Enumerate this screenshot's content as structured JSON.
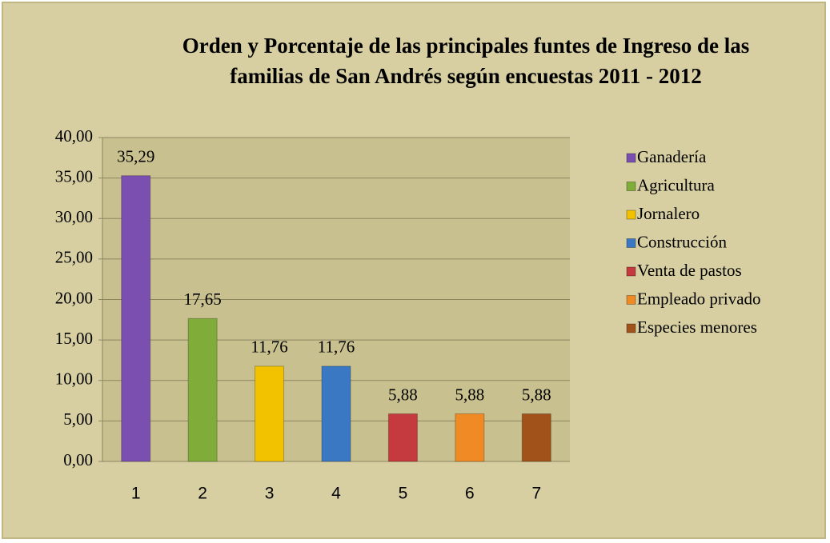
{
  "chart_data": {
    "type": "bar",
    "title": "Orden y Porcentaje de las principales funtes de Ingreso de las familias de San Andrés  según encuestas 2011 - 2012",
    "categories": [
      "1",
      "2",
      "3",
      "4",
      "5",
      "6",
      "7"
    ],
    "series": [
      {
        "name": "Ganadería",
        "color": "#7b4fb0",
        "values": [
          35.29,
          null,
          null,
          null,
          null,
          null,
          null
        ],
        "value_labels": [
          "35,29",
          null,
          null,
          null,
          null,
          null,
          null
        ]
      },
      {
        "name": "Agricultura",
        "color": "#80ad3a",
        "values": [
          null,
          17.65,
          null,
          null,
          null,
          null,
          null
        ],
        "value_labels": [
          null,
          "17,65",
          null,
          null,
          null,
          null,
          null
        ]
      },
      {
        "name": "Jornalero",
        "color": "#f2c200",
        "values": [
          null,
          null,
          11.76,
          null,
          null,
          null,
          null
        ],
        "value_labels": [
          null,
          null,
          "11,76",
          null,
          null,
          null,
          null
        ]
      },
      {
        "name": "Construcción",
        "color": "#3b78c4",
        "values": [
          null,
          null,
          null,
          11.76,
          null,
          null,
          null
        ],
        "value_labels": [
          null,
          null,
          null,
          "11,76",
          null,
          null,
          null
        ]
      },
      {
        "name": "Venta de pastos",
        "color": "#c43a3e",
        "values": [
          null,
          null,
          null,
          null,
          5.88,
          null,
          null
        ],
        "value_labels": [
          null,
          null,
          null,
          null,
          "5,88",
          null,
          null
        ]
      },
      {
        "name": "Empleado privado",
        "color": "#f08a24",
        "values": [
          null,
          null,
          null,
          null,
          null,
          5.88,
          null
        ],
        "value_labels": [
          null,
          null,
          null,
          null,
          null,
          "5,88",
          null
        ]
      },
      {
        "name": "Especies menores",
        "color": "#a0521a",
        "values": [
          null,
          null,
          null,
          null,
          null,
          null,
          5.88
        ],
        "value_labels": [
          null,
          null,
          null,
          null,
          null,
          null,
          "5,88"
        ]
      }
    ],
    "ylim": [
      0,
      40
    ],
    "yticks": [
      {
        "value": 0,
        "label": "0,00"
      },
      {
        "value": 5,
        "label": "5,00"
      },
      {
        "value": 10,
        "label": "10,00"
      },
      {
        "value": 15,
        "label": "15,00"
      },
      {
        "value": 20,
        "label": "20,00"
      },
      {
        "value": 25,
        "label": "25,00"
      },
      {
        "value": 30,
        "label": "30,00"
      },
      {
        "value": 35,
        "label": "35,00"
      },
      {
        "value": 40,
        "label": "40,00"
      }
    ],
    "grid": true,
    "legend": "right"
  }
}
